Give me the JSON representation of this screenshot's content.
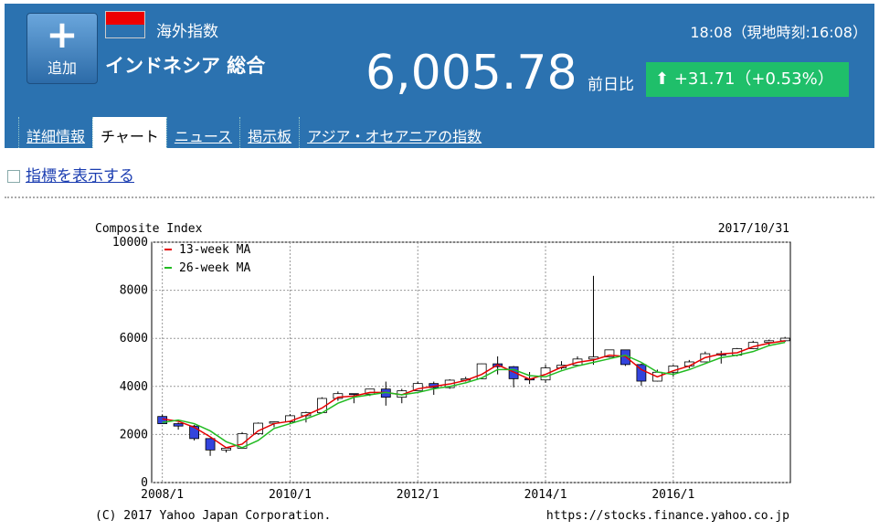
{
  "header": {
    "add_button": "追加",
    "category": "海外指数",
    "name": "インドネシア 総合",
    "time": "18:08（現地時刻:16:08）",
    "price": "6,005.78",
    "change_label": "前日比",
    "change": "+31.71（+0.53%）"
  },
  "tabs": [
    "詳細情報",
    "チャート",
    "ニュース",
    "掲示板",
    "アジア・オセアニアの指数"
  ],
  "toggle_link": "指標を表示する",
  "chart_data": {
    "type": "candlestick",
    "title": "Composite Index",
    "date": "2017/10/31",
    "x": [
      "2008/1",
      "2008/4",
      "2008/7",
      "2008/10",
      "2009/1",
      "2009/4",
      "2009/7",
      "2009/10",
      "2010/1",
      "2010/4",
      "2010/7",
      "2010/10",
      "2011/1",
      "2011/4",
      "2011/7",
      "2011/10",
      "2012/1",
      "2012/4",
      "2012/7",
      "2012/10",
      "2013/1",
      "2013/4",
      "2013/7",
      "2013/10",
      "2014/1",
      "2014/4",
      "2014/7",
      "2014/10",
      "2015/1",
      "2015/4",
      "2015/7",
      "2015/10",
      "2016/1",
      "2016/4",
      "2016/7",
      "2016/10",
      "2017/1",
      "2017/4",
      "2017/7",
      "2017/10"
    ],
    "open": [
      2750,
      2450,
      2350,
      1830,
      1355,
      1430,
      2030,
      2470,
      2530,
      2780,
      2910,
      3500,
      3700,
      3680,
      3890,
      3550,
      3820,
      4120,
      3950,
      4260,
      4320,
      4940,
      4820,
      4320,
      4270,
      4770,
      4880,
      5140,
      5230,
      5520,
      4910,
      4220,
      4590,
      4850,
      5020,
      5360,
      5300,
      5570,
      5830,
      5900
    ],
    "high": [
      2830,
      2500,
      2400,
      1850,
      1450,
      2100,
      2500,
      2550,
      2850,
      2950,
      3550,
      3790,
      3700,
      3900,
      4200,
      3900,
      4200,
      4200,
      4300,
      4400,
      4950,
      5250,
      4850,
      4600,
      4900,
      5050,
      5250,
      8600,
      5520,
      5450,
      4950,
      4700,
      4900,
      5100,
      5450,
      5480,
      5600,
      5900,
      5950,
      6060
    ],
    "low": [
      2450,
      2200,
      1750,
      1110,
      1250,
      1400,
      2000,
      2300,
      2450,
      2500,
      2900,
      3400,
      3300,
      3600,
      3200,
      3300,
      3800,
      3650,
      3900,
      4200,
      4300,
      4500,
      3960,
      4100,
      4150,
      4700,
      4950,
      4900,
      5200,
      4850,
      4030,
      4200,
      4400,
      4750,
      5000,
      4950,
      5250,
      5550,
      5700,
      5850
    ],
    "close": [
      2450,
      2350,
      1830,
      1355,
      1430,
      2030,
      2470,
      2530,
      2780,
      2910,
      3500,
      3700,
      3680,
      3890,
      3550,
      3820,
      4120,
      3950,
      4260,
      4320,
      4940,
      4820,
      4320,
      4270,
      4770,
      4880,
      5140,
      5230,
      5520,
      4910,
      4220,
      4590,
      4850,
      5020,
      5360,
      5300,
      5570,
      5830,
      5900,
      6006
    ],
    "up_color": "#ffffff",
    "down_color": "#3344dd",
    "series": [
      {
        "name": "13-week MA",
        "color": "#e60000",
        "values": [
          2650,
          2550,
          2300,
          1900,
          1450,
          1600,
          2150,
          2450,
          2550,
          2800,
          3100,
          3550,
          3600,
          3750,
          3750,
          3650,
          3900,
          4000,
          4100,
          4250,
          4500,
          4900,
          4600,
          4300,
          4500,
          4800,
          5000,
          5100,
          5300,
          5250,
          4700,
          4400,
          4650,
          4850,
          5200,
          5350,
          5400,
          5650,
          5800,
          5900
        ]
      },
      {
        "name": "26-week MA",
        "color": "#22bb22",
        "values": [
          2500,
          2600,
          2450,
          2150,
          1700,
          1450,
          1750,
          2250,
          2450,
          2650,
          2900,
          3300,
          3550,
          3650,
          3750,
          3650,
          3750,
          3900,
          4000,
          4150,
          4350,
          4700,
          4700,
          4450,
          4400,
          4650,
          4850,
          5000,
          5150,
          5300,
          5000,
          4600,
          4500,
          4700,
          4950,
          5200,
          5300,
          5450,
          5700,
          5830
        ]
      }
    ],
    "xlim": [
      "2007/11",
      "2017/11"
    ],
    "xticks": [
      "2008/1",
      "2010/1",
      "2012/1",
      "2014/1",
      "2016/1"
    ],
    "ylim": [
      0,
      10000
    ],
    "yticks": [
      0,
      2000,
      4000,
      6000,
      8000,
      10000
    ],
    "grid": true,
    "copyright": "(C) 2017 Yahoo Japan Corporation.",
    "url": "https://stocks.finance.yahoo.co.jp"
  }
}
